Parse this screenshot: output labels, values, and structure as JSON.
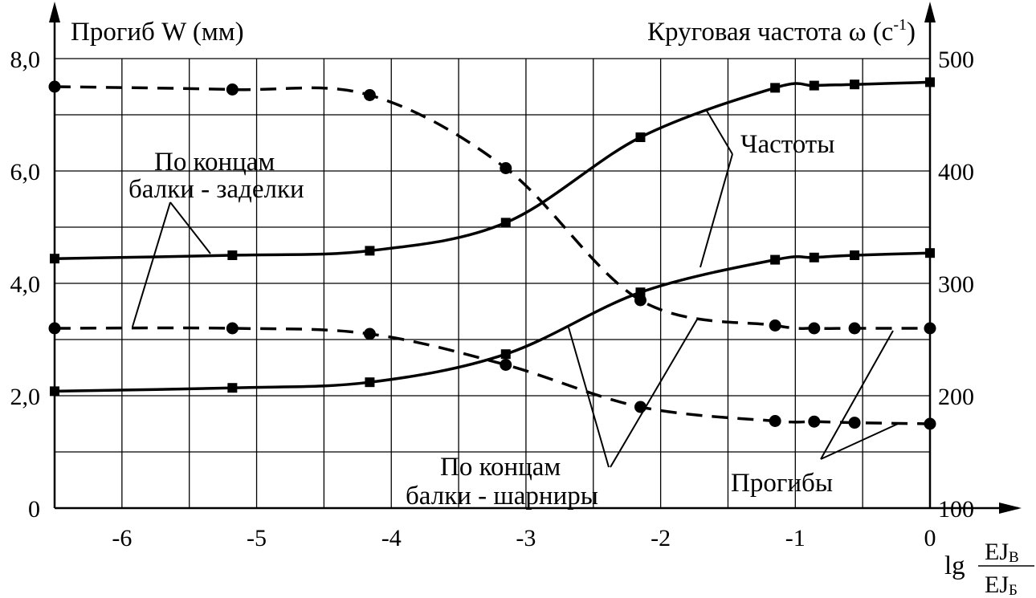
{
  "chart_data": {
    "type": "line",
    "left_axis_title": "Прогиб W (мм)",
    "right_axis_title_prefix": "Круговая частота ω  (с",
    "right_axis_title_sup": "-1",
    "right_axis_title_suffix": ")",
    "xlabel_prefix": "lg",
    "xlabel_numerator": "EJ",
    "xlabel_numerator_sub": "В",
    "xlabel_denominator": "EJ",
    "xlabel_denominator_sub": "Б",
    "xlim": [
      -6.5,
      0
    ],
    "ylim_left": [
      0,
      8
    ],
    "ylim_right": [
      100,
      500
    ],
    "x_ticks": [
      "-6",
      "-5",
      "-4",
      "-3",
      "-2",
      "-1",
      "0"
    ],
    "y_left_ticks": [
      "0",
      "2,0",
      "4,0",
      "6,0",
      "8,0"
    ],
    "y_right_ticks": [
      "100",
      "200",
      "300",
      "400",
      "500"
    ],
    "grid": true,
    "series": [
      {
        "axis": "right",
        "kind": "frequency",
        "style": "solid",
        "marker": "square",
        "x": [
          -6.5,
          -5.18,
          -4.16,
          -3.15,
          -2.15,
          -1.15,
          -0.86,
          -0.56,
          0.0
        ],
        "y": [
          322,
          325,
          329,
          354,
          430,
          474,
          476,
          477,
          479
        ]
      },
      {
        "axis": "right",
        "kind": "frequency",
        "style": "solid",
        "marker": "square",
        "x": [
          -6.5,
          -5.18,
          -4.16,
          -3.15,
          -2.15,
          -1.15,
          -0.86,
          -0.56,
          0.0
        ],
        "y": [
          204,
          207,
          212,
          237,
          292,
          321,
          323,
          325,
          327
        ]
      },
      {
        "axis": "left",
        "kind": "deflection",
        "style": "dashed",
        "marker": "circle",
        "x": [
          -6.5,
          -5.18,
          -4.16,
          -3.15,
          -2.15,
          -1.15,
          -0.86,
          -0.56,
          0.0
        ],
        "y": [
          7.5,
          7.45,
          7.35,
          6.05,
          3.7,
          3.25,
          3.2,
          3.2,
          3.2
        ]
      },
      {
        "axis": "left",
        "kind": "deflection",
        "style": "dashed",
        "marker": "circle",
        "x": [
          -6.5,
          -5.18,
          -4.16,
          -3.15,
          -2.15,
          -1.15,
          -0.86,
          -0.56,
          0.0
        ],
        "y": [
          3.2,
          3.2,
          3.1,
          2.55,
          1.8,
          1.55,
          1.54,
          1.52,
          1.5
        ]
      }
    ],
    "annotations": {
      "fixed_line1": "По концам",
      "fixed_line2": "балки - заделки",
      "hinged_line1": "По концам",
      "hinged_line2": "балки - шарниры",
      "frequencies": "Частоты",
      "deflections": "Прогибы"
    }
  }
}
